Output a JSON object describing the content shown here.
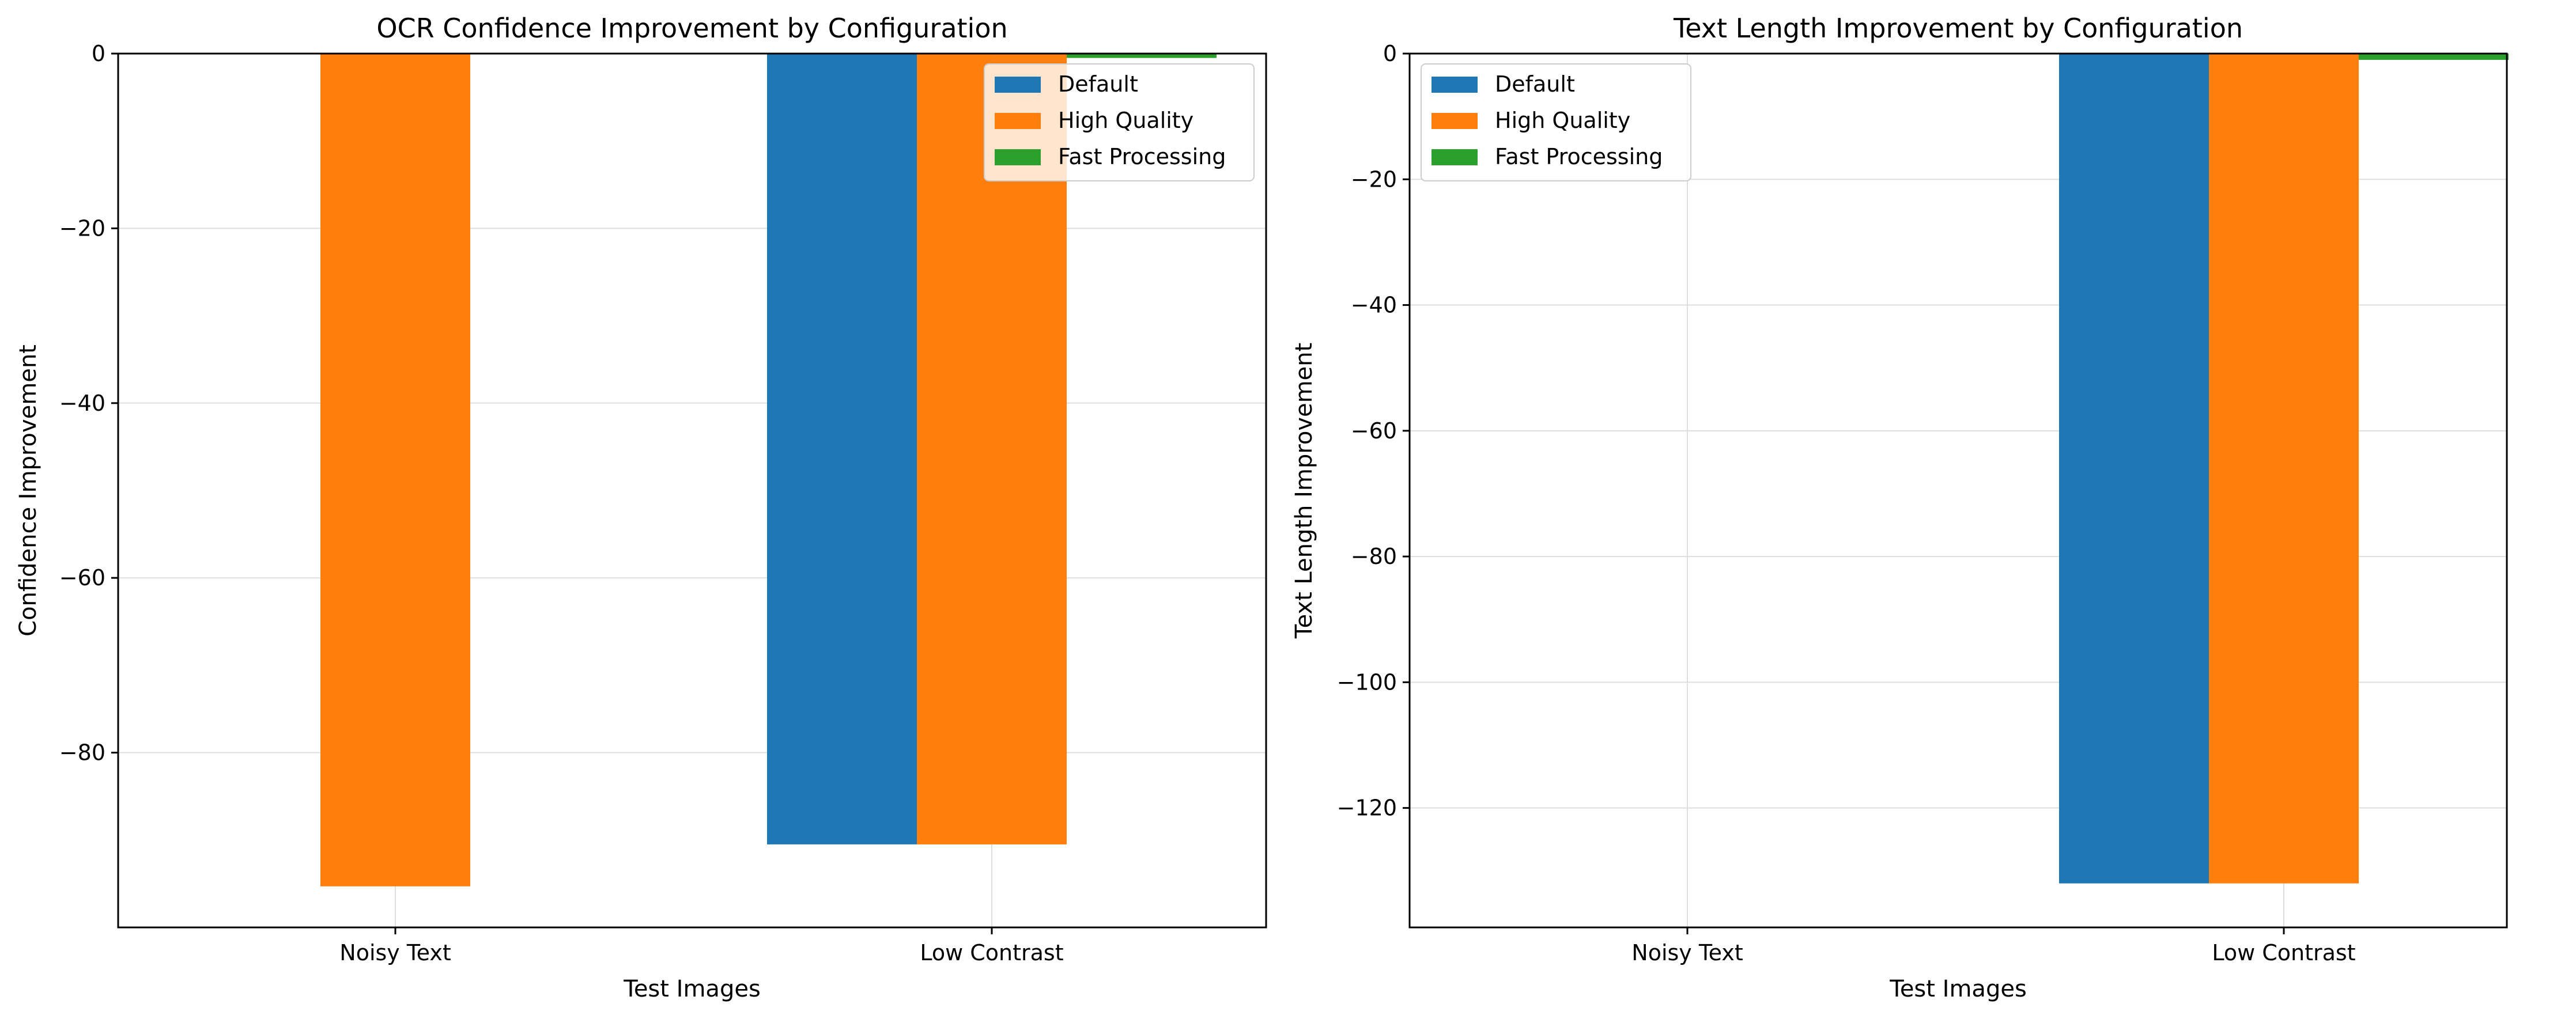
{
  "chart_data": [
    {
      "type": "bar",
      "title": "OCR Confidence Improvement by Configuration",
      "xlabel": "Test Images",
      "ylabel": "Confidence Improvement",
      "categories": [
        "Noisy Text",
        "Low Contrast"
      ],
      "series": [
        {
          "name": "Default",
          "color": "#1f77b4",
          "values": [
            0,
            -90.5
          ]
        },
        {
          "name": "High Quality",
          "color": "#ff7f0e",
          "values": [
            -95.3,
            -90.5
          ]
        },
        {
          "name": "Fast Processing",
          "color": "#2ca02c",
          "values": [
            0,
            -0.5
          ]
        }
      ],
      "ylim": [
        -100,
        0
      ],
      "yticks": [
        0,
        -20,
        -40,
        -60,
        -80
      ],
      "grid": true,
      "legend_position": "top-right"
    },
    {
      "type": "bar",
      "title": "Text Length Improvement by Configuration",
      "xlabel": "Test Images",
      "ylabel": "Text Length Improvement",
      "categories": [
        "Noisy Text",
        "Low Contrast"
      ],
      "series": [
        {
          "name": "Default",
          "color": "#1f77b4",
          "values": [
            0,
            -132
          ]
        },
        {
          "name": "High Quality",
          "color": "#ff7f0e",
          "values": [
            0,
            -132
          ]
        },
        {
          "name": "Fast Processing",
          "color": "#2ca02c",
          "values": [
            0,
            -1
          ]
        }
      ],
      "ylim": [
        -139,
        0
      ],
      "yticks": [
        0,
        -20,
        -40,
        -60,
        -80,
        -100,
        -120
      ],
      "grid": true,
      "legend_position": "top-left"
    }
  ]
}
